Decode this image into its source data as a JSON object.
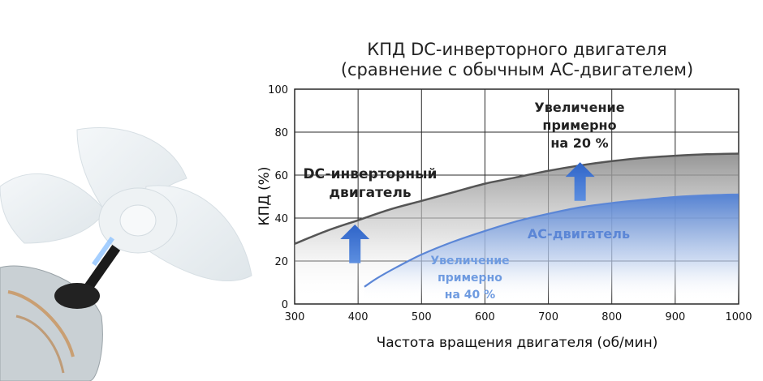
{
  "chart_data": {
    "type": "area",
    "title": [
      "КПД DC-инверторного двигателя",
      "(сравнение с обычным АС-двигателем)"
    ],
    "xlabel": "Частота вращения двигателя (об/мин)",
    "ylabel": "КПД (%)",
    "xlim": [
      300,
      1000
    ],
    "ylim": [
      0,
      100
    ],
    "x_ticks": [
      "300",
      "400",
      "500",
      "600",
      "700",
      "800",
      "900",
      "1000"
    ],
    "y_ticks": [
      "0",
      "20",
      "40",
      "60",
      "80",
      "100"
    ],
    "grid": true,
    "series": [
      {
        "name": "DC-инверторный двигатель",
        "color": "#555555",
        "x": [
          300,
          350,
          400,
          450,
          500,
          550,
          600,
          650,
          700,
          750,
          800,
          850,
          900,
          950,
          1000
        ],
        "y": [
          28,
          34,
          39,
          44,
          48,
          52,
          56,
          59,
          62,
          64.5,
          66.5,
          68,
          69,
          69.7,
          70
        ]
      },
      {
        "name": "АС-двигатель",
        "color": "#5b86d6",
        "x": [
          410,
          430,
          460,
          500,
          550,
          600,
          650,
          700,
          750,
          800,
          850,
          900,
          950,
          1000
        ],
        "y": [
          8,
          12,
          17,
          23,
          29,
          34,
          38.5,
          42,
          45,
          47,
          48.5,
          49.8,
          50.6,
          51
        ]
      }
    ],
    "annotations": [
      {
        "text": [
          "Увеличение",
          "примерно",
          "на 20 %"
        ],
        "x": 748,
        "y": 92,
        "color": "#222222"
      },
      {
        "text": [
          "Увеличение",
          "примерно",
          "на 40 %"
        ],
        "x": 578,
        "y": 19,
        "color": "#6f9be0"
      }
    ],
    "arrows": [
      {
        "x": 395,
        "y_from": 19,
        "y_to": 37,
        "color": "#3b6fd0"
      },
      {
        "x": 750,
        "y_from": 48,
        "y_to": 66,
        "color": "#3b6fd0"
      }
    ]
  }
}
